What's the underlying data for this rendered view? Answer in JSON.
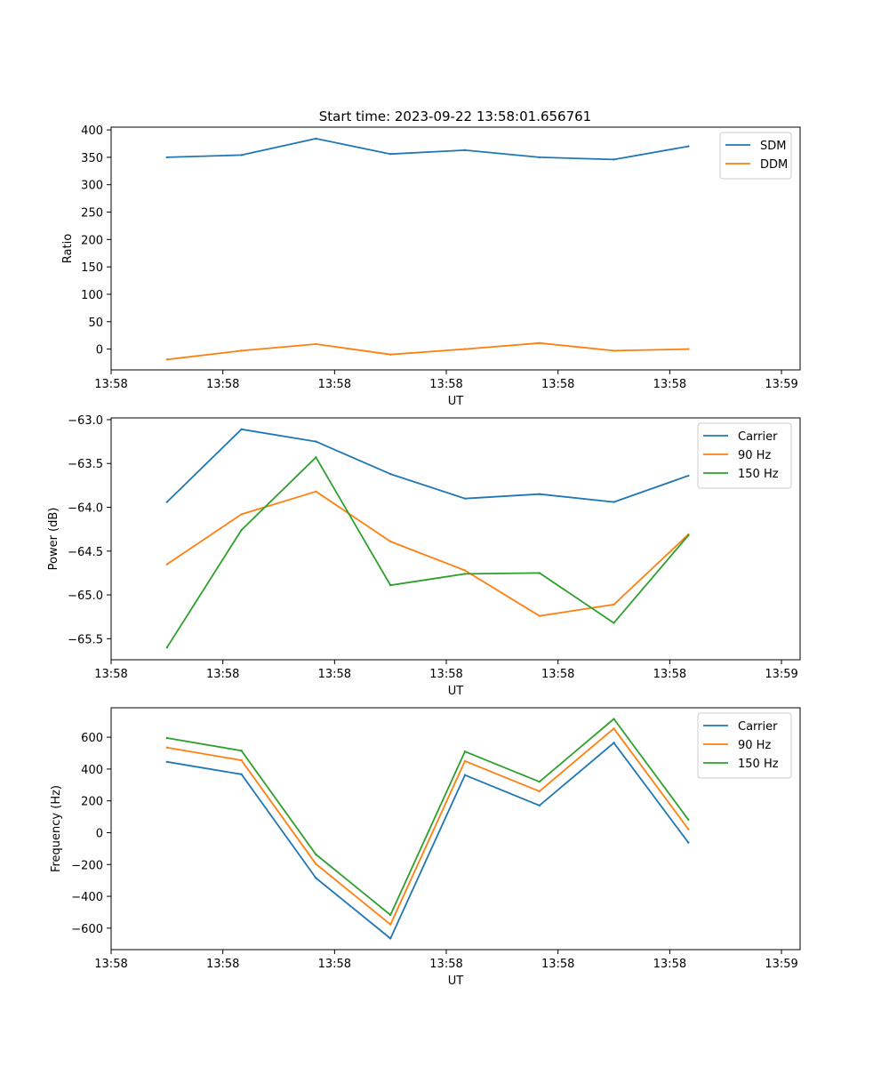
{
  "figure": {
    "title": "Start time: 2023-09-22 13:58:01.656761"
  },
  "colors": {
    "c0": "#1f77b4",
    "c1": "#ff7f0e",
    "c2": "#2ca02c"
  },
  "chart_data": [
    {
      "type": "line",
      "title": "Start time: 2023-09-22 13:58:01.656761",
      "xlabel": "UT",
      "ylabel": "Ratio",
      "xlim": [
        -0.75,
        8.5
      ],
      "ylim": [
        -38,
        405
      ],
      "xticks": [
        -0.75,
        0.75,
        2.25,
        3.75,
        5.25,
        6.75,
        8.25
      ],
      "xtick_labels": [
        "13:58",
        "13:58",
        "13:58",
        "13:58",
        "13:58",
        "13:58",
        "13:59"
      ],
      "yticks": [
        0,
        50,
        100,
        150,
        200,
        250,
        300,
        350,
        400
      ],
      "ytick_labels": [
        "0",
        "50",
        "100",
        "150",
        "200",
        "250",
        "300",
        "350",
        "400"
      ],
      "x": [
        0,
        1,
        2,
        3,
        4,
        5,
        6,
        7
      ],
      "series": [
        {
          "name": "SDM",
          "color": "#1f77b4",
          "values": [
            350,
            354,
            384,
            356,
            363,
            350,
            346,
            370
          ]
        },
        {
          "name": "DDM",
          "color": "#ff7f0e",
          "values": [
            -19,
            -3,
            9,
            -10,
            0,
            11,
            -3,
            0
          ]
        }
      ],
      "legend": "top-right"
    },
    {
      "type": "line",
      "title": "",
      "xlabel": "UT",
      "ylabel": "Power (dB)",
      "xlim": [
        -0.75,
        8.5
      ],
      "ylim": [
        -65.74,
        -62.98
      ],
      "xticks": [
        -0.75,
        0.75,
        2.25,
        3.75,
        5.25,
        6.75,
        8.25
      ],
      "xtick_labels": [
        "13:58",
        "13:58",
        "13:58",
        "13:58",
        "13:58",
        "13:58",
        "13:59"
      ],
      "yticks": [
        -65.5,
        -65.0,
        -64.5,
        -64.0,
        -63.5,
        -63.0
      ],
      "ytick_labels": [
        "−65.5",
        "−65.0",
        "−64.5",
        "−64.0",
        "−63.5",
        "−63.0"
      ],
      "x": [
        0,
        1,
        2,
        3,
        4,
        5,
        6,
        7
      ],
      "series": [
        {
          "name": "Carrier",
          "color": "#1f77b4",
          "values": [
            -63.94,
            -63.11,
            -63.25,
            -63.62,
            -63.9,
            -63.85,
            -63.94,
            -63.64
          ]
        },
        {
          "name": "90 Hz",
          "color": "#ff7f0e",
          "values": [
            -64.65,
            -64.08,
            -63.82,
            -64.39,
            -64.72,
            -65.24,
            -65.11,
            -64.31
          ]
        },
        {
          "name": "150 Hz",
          "color": "#2ca02c",
          "values": [
            -65.6,
            -64.26,
            -63.43,
            -64.89,
            -64.76,
            -64.75,
            -65.32,
            -64.32
          ]
        }
      ],
      "legend": "top-right"
    },
    {
      "type": "line",
      "title": "",
      "xlabel": "UT",
      "ylabel": "Frequency (Hz)",
      "xlim": [
        -0.75,
        8.5
      ],
      "ylim": [
        -735,
        785
      ],
      "xticks": [
        -0.75,
        0.75,
        2.25,
        3.75,
        5.25,
        6.75,
        8.25
      ],
      "xtick_labels": [
        "13:58",
        "13:58",
        "13:58",
        "13:58",
        "13:58",
        "13:58",
        "13:59"
      ],
      "yticks": [
        -600,
        -400,
        -200,
        0,
        200,
        400,
        600
      ],
      "ytick_labels": [
        "−600",
        "−400",
        "−200",
        "0",
        "200",
        "400",
        "600"
      ],
      "x": [
        0,
        1,
        2,
        3,
        4,
        5,
        6,
        7
      ],
      "series": [
        {
          "name": "Carrier",
          "color": "#1f77b4",
          "values": [
            445,
            367,
            -285,
            -665,
            362,
            171,
            565,
            -62
          ]
        },
        {
          "name": "90 Hz",
          "color": "#ff7f0e",
          "values": [
            535,
            455,
            -197,
            -577,
            450,
            260,
            655,
            22
          ]
        },
        {
          "name": "150 Hz",
          "color": "#2ca02c",
          "values": [
            595,
            515,
            -137,
            -517,
            510,
            320,
            715,
            82
          ]
        }
      ],
      "legend": "top-right"
    }
  ]
}
